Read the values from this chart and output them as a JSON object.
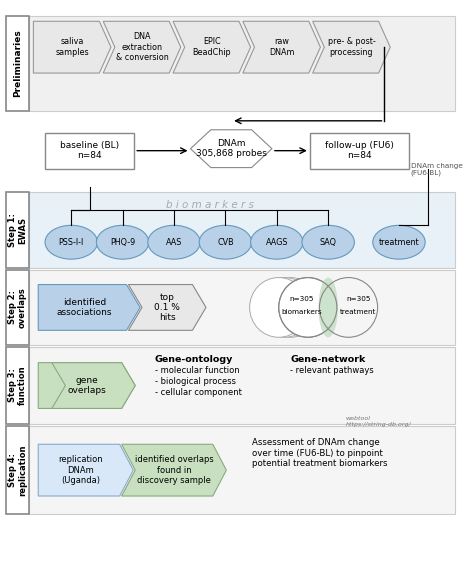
{
  "prelim_steps": [
    "saliva\nsamples",
    "DNA\nextraction\n& conversion",
    "EPIC\nBeadChip",
    "raw\nDNAm",
    "pre- & post-\nprocessing"
  ],
  "prelim_label": "Preliminaries",
  "center_box": "DNAm\n305,868 probes",
  "left_box": "baseline (BL)\nn=84",
  "right_box": "follow-up (FU6)\nn=84",
  "dnam_change_label": "DNAm change\n(FU6-BL)",
  "biomarkers_label": "b i o m a r k e r s",
  "ewas_circles": [
    "PSS-I-I",
    "PHQ-9",
    "AAS",
    "CVB",
    "AAGS",
    "SAQ",
    "treatment"
  ],
  "step1_label": "Step 1:\nEWAS",
  "step2_label": "Step 2:\noverlaps",
  "step2_arrows": [
    "identified\nassociations",
    "top\n0.1 %\nhits"
  ],
  "venn_labels": [
    "biomarkers",
    "treatment"
  ],
  "venn_n": [
    "n=305",
    "n=305"
  ],
  "step3_label": "Step 3:\nfunction",
  "step3_gene": "gene\noverlaps",
  "gene_ontology_title": "Gene-ontology",
  "gene_ontology_items": [
    "- molecular function",
    "- biological process",
    "- cellular component"
  ],
  "gene_network_title": "Gene-network",
  "gene_network_items": [
    "- relevant pathways"
  ],
  "webtool_label": "webtool\nhttps://string-db.org/",
  "step4_label": "Step 4:\nreplication",
  "step4_box1": "replication\nDNAm\n(Uganda)",
  "step4_box2": "identified overlaps\nfound in\ndiscovery sample",
  "step4_text": "Assessment of DNAm change\nover time (FU6-BL) to pinpoint\npotential treatment biomarkers",
  "color_prelim_bg": "#f0f0f0",
  "color_step1_bg": "#e8f0f8",
  "color_step1_circle": "#b8d0e8",
  "color_venn_overlap": "#c8e0c8",
  "color_step3_arrow": "#c8e0c0",
  "color_step4_arrow1": "#d8e8f8",
  "color_step4_arrow2": "#c8e0c0",
  "fig_width": 4.74,
  "fig_height": 5.83
}
